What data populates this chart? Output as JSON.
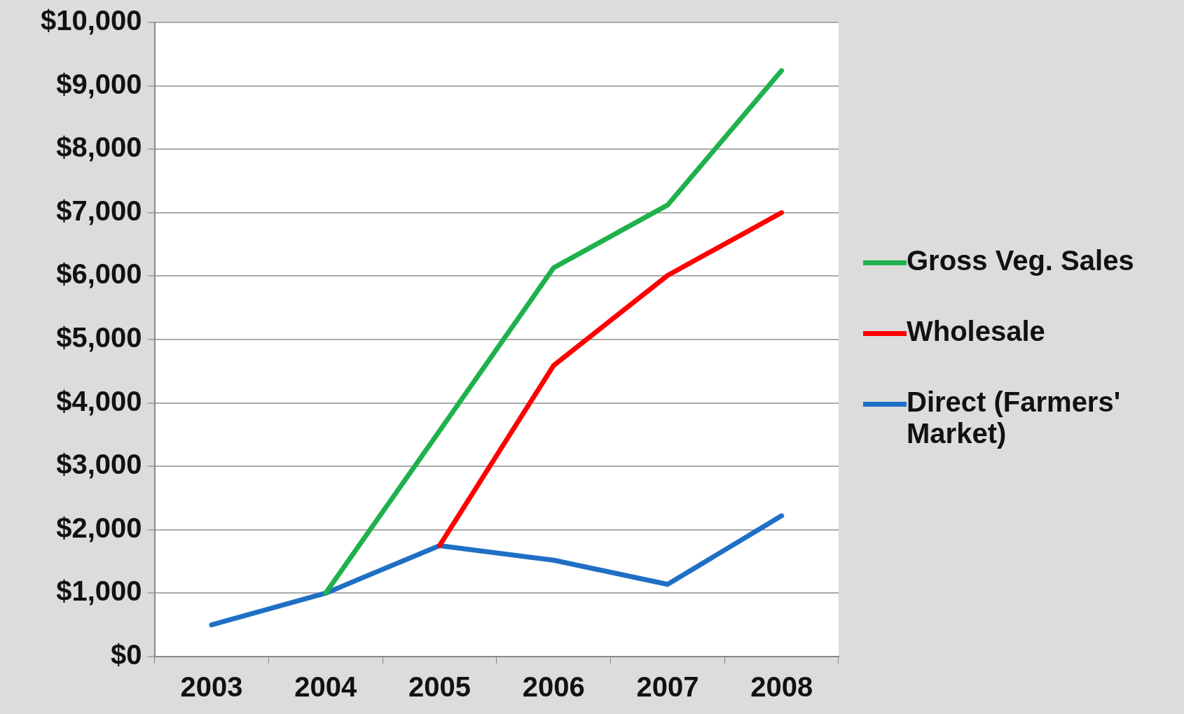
{
  "chart_data": {
    "type": "line",
    "categories": [
      "2003",
      "2004",
      "2005",
      "2006",
      "2007",
      "2008"
    ],
    "series": [
      {
        "name": "Gross Veg. Sales",
        "color": "#1fb14c",
        "values": [
          null,
          1000,
          3560,
          6130,
          7120,
          9240
        ]
      },
      {
        "name": "Wholesale",
        "color": "#ff0000",
        "values": [
          null,
          null,
          1750,
          4590,
          6010,
          7000
        ]
      },
      {
        "name": "Direct (Farmers' Market)",
        "color": "#1f6fc5",
        "values": [
          500,
          1000,
          1750,
          1520,
          1140,
          2220
        ]
      }
    ],
    "ylim": [
      0,
      10000
    ],
    "yticks": [
      {
        "value": 0,
        "label": "$0"
      },
      {
        "value": 1000,
        "label": "$1,000"
      },
      {
        "value": 2000,
        "label": "$2,000"
      },
      {
        "value": 3000,
        "label": "$3,000"
      },
      {
        "value": 4000,
        "label": "$4,000"
      },
      {
        "value": 5000,
        "label": "$5,000"
      },
      {
        "value": 6000,
        "label": "$6,000"
      },
      {
        "value": 7000,
        "label": "$7,000"
      },
      {
        "value": 8000,
        "label": "$8,000"
      },
      {
        "value": 9000,
        "label": "$9,000"
      },
      {
        "value": 10000,
        "label": "$10,000"
      }
    ],
    "grid": "y",
    "legend": "right",
    "marker": "none",
    "line_style": "solid"
  }
}
